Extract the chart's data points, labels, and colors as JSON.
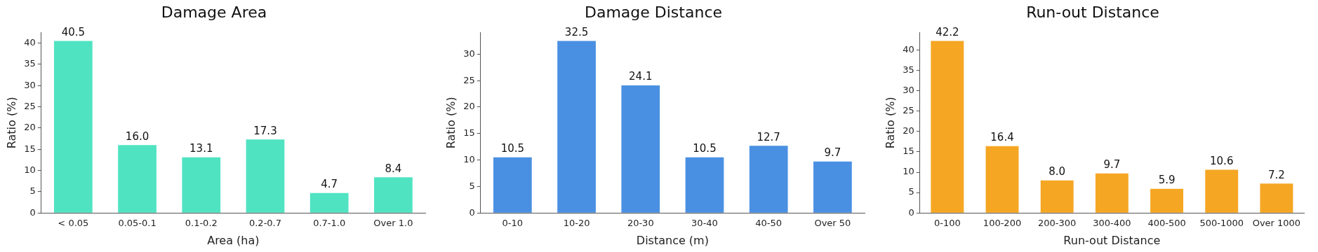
{
  "chart_data": [
    {
      "type": "bar",
      "title": "Damage Area",
      "xlabel": "Area (ha)",
      "ylabel": "Ratio (%)",
      "categories": [
        "< 0.05",
        "0.05-0.1",
        "0.1-0.2",
        "0.2-0.7",
        "0.7-1.0",
        "Over 1.0"
      ],
      "values": [
        40.5,
        16.0,
        13.1,
        17.3,
        4.7,
        8.4
      ],
      "value_labels": [
        "40.5",
        "16.0",
        "13.1",
        "17.3",
        "4.7",
        "8.4"
      ],
      "color": "#50e3c2",
      "ylim": [
        0,
        42.5
      ],
      "yticks": [
        0,
        5,
        10,
        15,
        20,
        25,
        30,
        35,
        40
      ],
      "grid": false,
      "legend": false
    },
    {
      "type": "bar",
      "title": "Damage Distance",
      "xlabel": "Distance (m)",
      "ylabel": "Ratio (%)",
      "categories": [
        "0-10",
        "10-20",
        "20-30",
        "30-40",
        "40-50",
        "Over 50"
      ],
      "values": [
        10.5,
        32.5,
        24.1,
        10.5,
        12.7,
        9.7
      ],
      "value_labels": [
        "10.5",
        "32.5",
        "24.1",
        "10.5",
        "12.7",
        "9.7"
      ],
      "color": "#4a90e2",
      "ylim": [
        0,
        34.1
      ],
      "yticks": [
        0,
        5,
        10,
        15,
        20,
        25,
        30
      ],
      "grid": false,
      "legend": false
    },
    {
      "type": "bar",
      "title": "Run-out Distance",
      "xlabel": "Run-out Distance",
      "ylabel": "Ratio (%)",
      "categories": [
        "0-100",
        "100-200",
        "200-300",
        "300-400",
        "400-500",
        "500-1000",
        "Over 1000"
      ],
      "values": [
        42.2,
        16.4,
        8.0,
        9.7,
        5.9,
        10.6,
        7.2
      ],
      "value_labels": [
        "42.2",
        "16.4",
        "8.0",
        "9.7",
        "5.9",
        "10.6",
        "7.2"
      ],
      "color": "#f5a623",
      "ylim": [
        0,
        44.3
      ],
      "yticks": [
        0,
        5,
        10,
        15,
        20,
        25,
        30,
        35,
        40
      ],
      "grid": false,
      "legend": false
    }
  ]
}
